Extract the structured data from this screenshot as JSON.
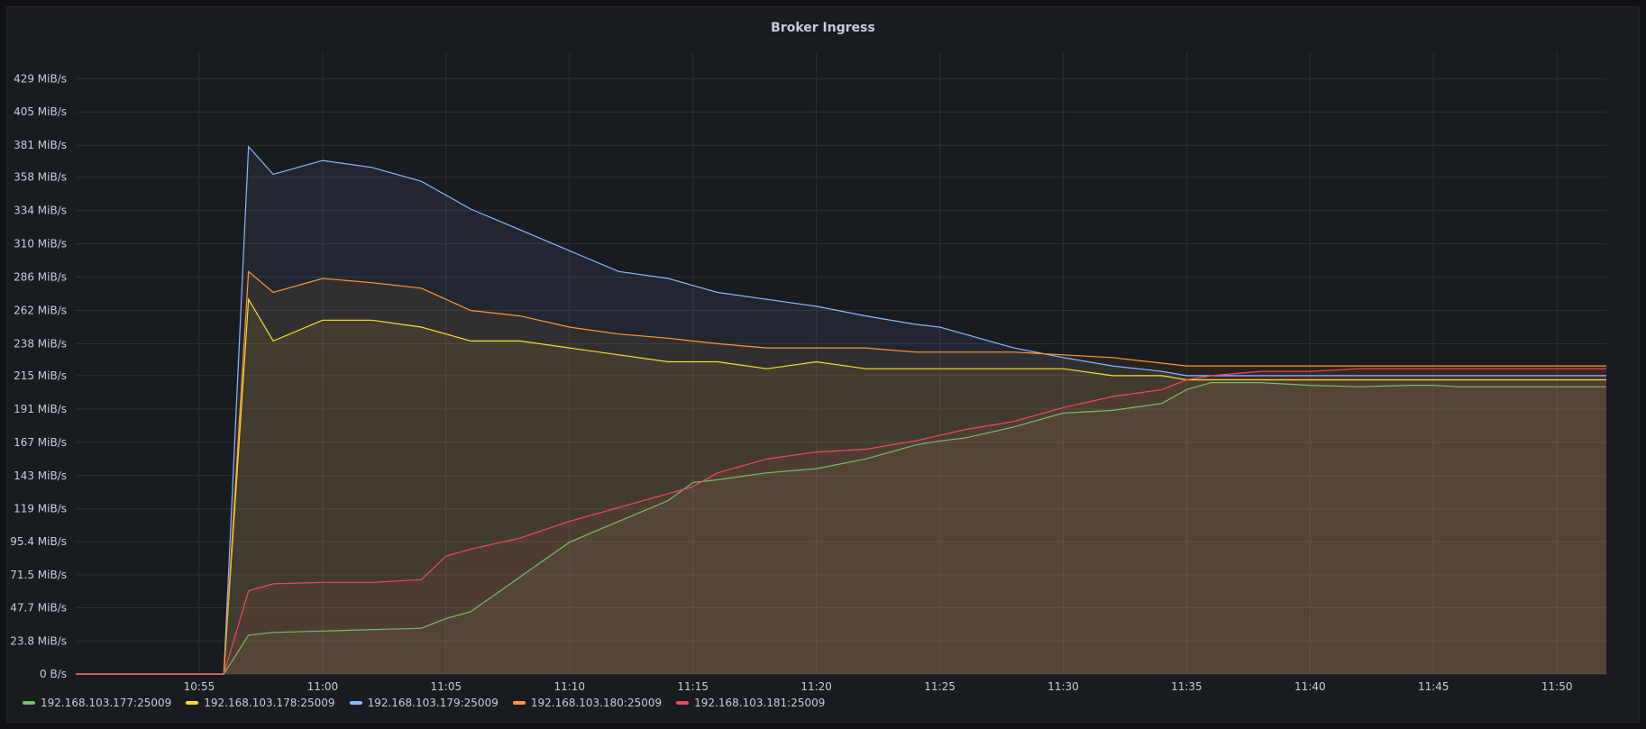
{
  "panel": {
    "title": "Broker Ingress"
  },
  "chart_data": {
    "type": "line",
    "title": "Broker Ingress",
    "xlabel": "",
    "ylabel": "",
    "unit": "MiB/s",
    "xlim": [
      "10:50",
      "11:52"
    ],
    "ylim": [
      0,
      448
    ],
    "grid": true,
    "legend_position": "bottom-left",
    "x_ticks": [
      "10:55",
      "11:00",
      "11:05",
      "11:10",
      "11:15",
      "11:20",
      "11:25",
      "11:30",
      "11:35",
      "11:40",
      "11:45",
      "11:50"
    ],
    "y_ticks": [
      {
        "value": 0,
        "label": "0 B/s"
      },
      {
        "value": 23.8,
        "label": "23.8 MiB/s"
      },
      {
        "value": 47.7,
        "label": "47.7 MiB/s"
      },
      {
        "value": 71.5,
        "label": "71.5 MiB/s"
      },
      {
        "value": 95.4,
        "label": "95.4 MiB/s"
      },
      {
        "value": 119,
        "label": "119 MiB/s"
      },
      {
        "value": 143,
        "label": "143 MiB/s"
      },
      {
        "value": 167,
        "label": "167 MiB/s"
      },
      {
        "value": 191,
        "label": "191 MiB/s"
      },
      {
        "value": 215,
        "label": "215 MiB/s"
      },
      {
        "value": 238,
        "label": "238 MiB/s"
      },
      {
        "value": 262,
        "label": "262 MiB/s"
      },
      {
        "value": 286,
        "label": "286 MiB/s"
      },
      {
        "value": 310,
        "label": "310 MiB/s"
      },
      {
        "value": 334,
        "label": "334 MiB/s"
      },
      {
        "value": 358,
        "label": "358 MiB/s"
      },
      {
        "value": 381,
        "label": "381 MiB/s"
      },
      {
        "value": 405,
        "label": "405 MiB/s"
      },
      {
        "value": 429,
        "label": "429 MiB/s"
      }
    ],
    "x": [
      "10:50",
      "10:55",
      "10:56",
      "10:57",
      "10:58",
      "11:00",
      "11:02",
      "11:04",
      "11:05",
      "11:06",
      "11:08",
      "11:10",
      "11:12",
      "11:14",
      "11:15",
      "11:16",
      "11:18",
      "11:20",
      "11:22",
      "11:24",
      "11:25",
      "11:26",
      "11:28",
      "11:30",
      "11:32",
      "11:34",
      "11:35",
      "11:36",
      "11:38",
      "11:40",
      "11:42",
      "11:44",
      "11:45",
      "11:46",
      "11:48",
      "11:50",
      "11:52"
    ],
    "series": [
      {
        "name": "192.168.103.177:25009",
        "color": "#73bf69",
        "fill": true,
        "values": [
          0,
          0,
          0,
          28,
          30,
          31,
          32,
          33,
          40,
          45,
          70,
          95,
          110,
          125,
          138,
          140,
          145,
          148,
          155,
          165,
          168,
          170,
          178,
          188,
          190,
          195,
          205,
          210,
          210,
          208,
          207,
          208,
          208,
          207,
          207,
          207,
          207
        ]
      },
      {
        "name": "192.168.103.178:25009",
        "color": "#fade2a",
        "fill": true,
        "values": [
          0,
          0,
          0,
          270,
          240,
          255,
          255,
          250,
          245,
          240,
          240,
          235,
          230,
          225,
          225,
          225,
          220,
          225,
          220,
          220,
          220,
          220,
          220,
          220,
          215,
          215,
          212,
          212,
          212,
          212,
          212,
          212,
          212,
          212,
          212,
          212,
          212
        ]
      },
      {
        "name": "192.168.103.179:25009",
        "color": "#8ab8ff",
        "fill": true,
        "values": [
          0,
          0,
          0,
          380,
          360,
          370,
          365,
          355,
          345,
          335,
          320,
          305,
          290,
          285,
          280,
          275,
          270,
          265,
          258,
          252,
          250,
          245,
          235,
          228,
          222,
          218,
          215,
          215,
          215,
          215,
          215,
          215,
          215,
          215,
          215,
          215,
          215
        ]
      },
      {
        "name": "192.168.103.180:25009",
        "color": "#ff9830",
        "fill": true,
        "values": [
          0,
          0,
          0,
          290,
          275,
          285,
          282,
          278,
          270,
          262,
          258,
          250,
          245,
          242,
          240,
          238,
          235,
          235,
          235,
          232,
          232,
          232,
          232,
          230,
          228,
          224,
          222,
          222,
          222,
          222,
          222,
          222,
          222,
          222,
          222,
          222,
          222
        ]
      },
      {
        "name": "192.168.103.181:25009",
        "color": "#f2495c",
        "fill": true,
        "values": [
          0,
          0,
          0,
          60,
          65,
          66,
          66,
          68,
          85,
          90,
          98,
          110,
          120,
          130,
          135,
          145,
          155,
          160,
          162,
          168,
          172,
          176,
          182,
          192,
          200,
          205,
          212,
          215,
          218,
          218,
          220,
          220,
          220,
          220,
          220,
          220,
          220
        ]
      }
    ]
  }
}
